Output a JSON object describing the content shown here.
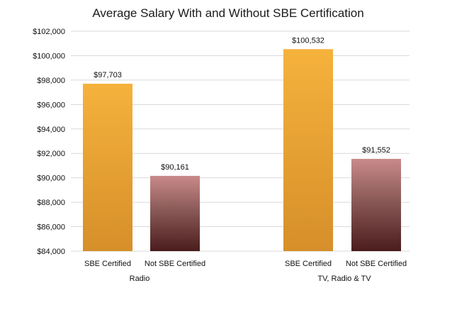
{
  "chart_data": {
    "type": "bar",
    "title": "Average Salary With and Without SBE Certification",
    "xlabel": "",
    "ylabel": "",
    "ylim": [
      84000,
      102000
    ],
    "ytick_step": 2000,
    "grid": true,
    "legend": "none",
    "groups": [
      "Radio",
      "TV, Radio & TV"
    ],
    "categories": [
      "SBE Certified",
      "Not SBE Certified"
    ],
    "series": [
      {
        "group": "Radio",
        "values": [
          97703,
          90161
        ],
        "value_labels": [
          "$97,703",
          "$90,161"
        ]
      },
      {
        "group": "TV, Radio & TV",
        "values": [
          100532,
          91552
        ],
        "value_labels": [
          "$100,532",
          "$91,552"
        ]
      }
    ],
    "colors": {
      "sbe_top": "#f5b23c",
      "sbe_bottom": "#d68f2a",
      "not_top": "#c98a8a",
      "not_bottom": "#4a1c1c"
    }
  }
}
